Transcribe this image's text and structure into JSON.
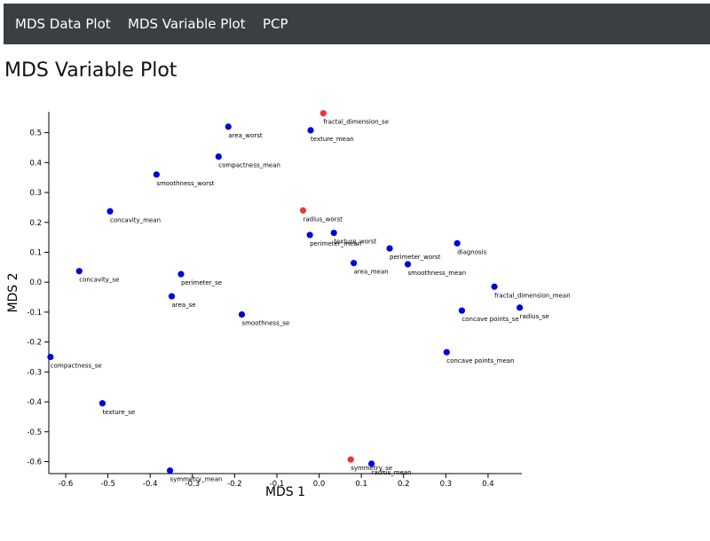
{
  "nav": {
    "items": [
      {
        "label": "MDS Data Plot"
      },
      {
        "label": "MDS Variable Plot"
      },
      {
        "label": "PCP"
      }
    ]
  },
  "page": {
    "title": "MDS Variable Plot"
  },
  "colors": {
    "navbar": "#3a3f44",
    "point": "#0000e0",
    "highlight": "#e53935"
  },
  "chart_data": {
    "type": "scatter",
    "title": "",
    "xlabel": "MDS 1",
    "ylabel": "MDS 2",
    "xlim": [
      -0.64,
      0.48
    ],
    "ylim": [
      -0.64,
      0.57
    ],
    "xticks": [
      "-0.6",
      "-0.5",
      "-0.4",
      "-0.3",
      "-0.2",
      "-0.1",
      "0.0",
      "0.1",
      "0.2",
      "0.3",
      "0.4"
    ],
    "yticks": [
      "-0.6",
      "-0.5",
      "-0.4",
      "-0.3",
      "-0.2",
      "-0.1",
      "0.0",
      "0.1",
      "0.2",
      "0.3",
      "0.4",
      "0.5"
    ],
    "grid": false,
    "points": [
      {
        "label": "fractal_dimension_se",
        "x": 0.01,
        "y": 0.565,
        "highlighted": true
      },
      {
        "label": "area_worst",
        "x": -0.215,
        "y": 0.52,
        "highlighted": false
      },
      {
        "label": "texture_mean",
        "x": -0.02,
        "y": 0.508,
        "highlighted": false
      },
      {
        "label": "compactness_mean",
        "x": -0.238,
        "y": 0.42,
        "highlighted": false
      },
      {
        "label": "smoothness_worst",
        "x": -0.385,
        "y": 0.36,
        "highlighted": false
      },
      {
        "label": "concavity_mean",
        "x": -0.495,
        "y": 0.237,
        "highlighted": false
      },
      {
        "label": "radius_worst",
        "x": -0.038,
        "y": 0.24,
        "highlighted": true
      },
      {
        "label": "perimeter_mean",
        "x": -0.022,
        "y": 0.158,
        "highlighted": false
      },
      {
        "label": "texture_worst",
        "x": 0.035,
        "y": 0.165,
        "highlighted": false
      },
      {
        "label": "perimeter_worst",
        "x": 0.167,
        "y": 0.113,
        "highlighted": false
      },
      {
        "label": "diagnosis",
        "x": 0.327,
        "y": 0.13,
        "highlighted": false
      },
      {
        "label": "area_mean",
        "x": 0.082,
        "y": 0.064,
        "highlighted": false
      },
      {
        "label": "smoothness_mean",
        "x": 0.21,
        "y": 0.06,
        "highlighted": false
      },
      {
        "label": "concavity_se",
        "x": -0.568,
        "y": 0.037,
        "highlighted": false
      },
      {
        "label": "perimeter_se",
        "x": -0.327,
        "y": 0.027,
        "highlighted": false
      },
      {
        "label": "area_se",
        "x": -0.349,
        "y": -0.047,
        "highlighted": false
      },
      {
        "label": "fractal_dimension_mean",
        "x": 0.415,
        "y": -0.015,
        "highlighted": false
      },
      {
        "label": "radius_se",
        "x": 0.475,
        "y": -0.085,
        "highlighted": false
      },
      {
        "label": "concave points_se",
        "x": 0.338,
        "y": -0.095,
        "highlighted": false
      },
      {
        "label": "smoothness_se",
        "x": -0.183,
        "y": -0.108,
        "highlighted": false
      },
      {
        "label": "concave points_mean",
        "x": 0.302,
        "y": -0.234,
        "highlighted": false
      },
      {
        "label": "compactness_se",
        "x": -0.636,
        "y": -0.25,
        "highlighted": false
      },
      {
        "label": "texture_se",
        "x": -0.513,
        "y": -0.405,
        "highlighted": false
      },
      {
        "label": "symmetry_se",
        "x": 0.075,
        "y": -0.593,
        "highlighted": true
      },
      {
        "label": "radius_mean",
        "x": 0.124,
        "y": -0.607,
        "highlighted": false
      },
      {
        "label": "symmetry_mean",
        "x": -0.353,
        "y": -0.63,
        "highlighted": false
      }
    ]
  }
}
